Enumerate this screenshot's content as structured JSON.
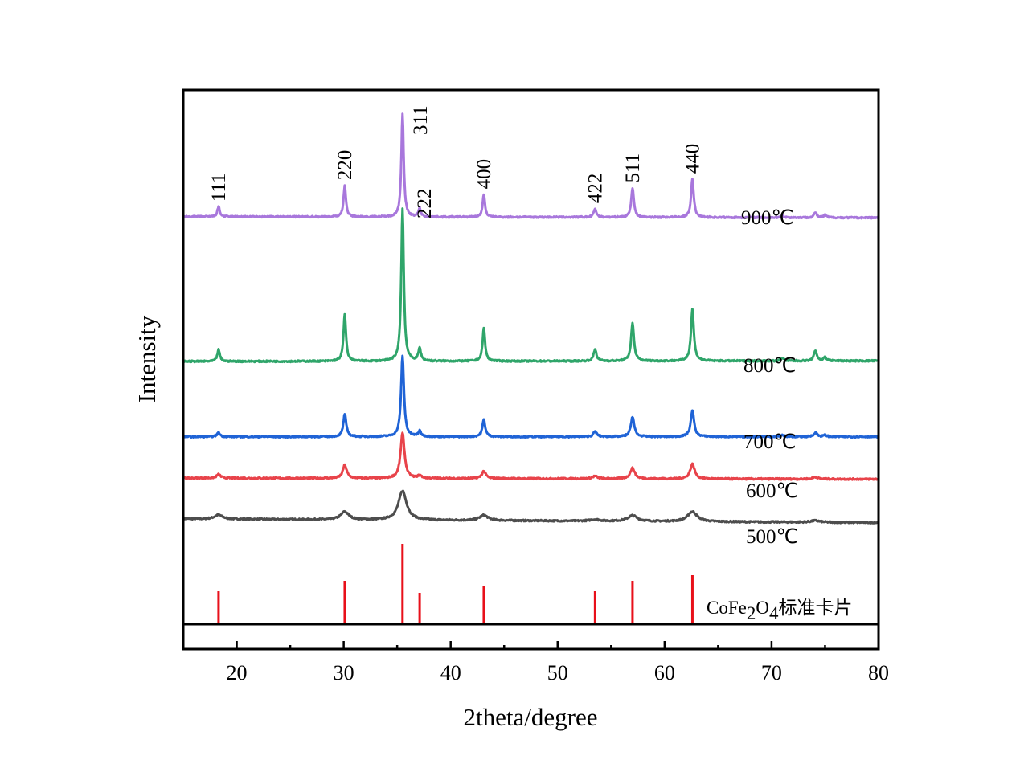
{
  "chart_data": {
    "type": "line",
    "title": "",
    "xlabel": "2theta/degree",
    "ylabel": "Intensity",
    "xlim": [
      15,
      80
    ],
    "ylim": [
      0,
      100
    ],
    "x_ticks": [
      20,
      30,
      40,
      50,
      60,
      70,
      80
    ],
    "x_tick_labels": [
      "20",
      "30",
      "40",
      "50",
      "60",
      "70",
      "80"
    ],
    "x_minor_ticks": [
      25,
      35,
      45,
      55,
      65,
      75
    ],
    "grid": false,
    "legend": "inline labels at right",
    "series": [
      {
        "name": "500℃",
        "label": "500℃",
        "color": "#4d4d4d",
        "baseline": 18.8,
        "baseline_end": 18.1,
        "peak_width": 0.45,
        "peaks": [
          {
            "x": 18.3,
            "height": 0.8
          },
          {
            "x": 30.1,
            "height": 1.5
          },
          {
            "x": 35.5,
            "height": 5.5
          },
          {
            "x": 43.1,
            "height": 1.0
          },
          {
            "x": 53.5,
            "height": 0.3
          },
          {
            "x": 57.0,
            "height": 1.1
          },
          {
            "x": 62.6,
            "height": 1.9
          },
          {
            "x": 74.1,
            "height": 0.3
          }
        ]
      },
      {
        "name": "600℃",
        "label": "600℃",
        "color": "#e8434a",
        "baseline": 26.5,
        "baseline_end": 26.3,
        "peak_width": 0.22,
        "peaks": [
          {
            "x": 18.3,
            "height": 0.7
          },
          {
            "x": 30.1,
            "height": 2.5
          },
          {
            "x": 35.5,
            "height": 8.5
          },
          {
            "x": 37.1,
            "height": 0.5
          },
          {
            "x": 43.1,
            "height": 1.4
          },
          {
            "x": 53.5,
            "height": 0.5
          },
          {
            "x": 57.0,
            "height": 2.0
          },
          {
            "x": 62.6,
            "height": 2.8
          },
          {
            "x": 74.1,
            "height": 0.4
          }
        ]
      },
      {
        "name": "700℃",
        "label": "700℃",
        "color": "#1f63d6",
        "baseline": 34.3,
        "baseline_end": 34.3,
        "peak_width": 0.16,
        "peaks": [
          {
            "x": 18.3,
            "height": 0.8
          },
          {
            "x": 30.1,
            "height": 4.3
          },
          {
            "x": 35.5,
            "height": 15.2
          },
          {
            "x": 37.1,
            "height": 1.0
          },
          {
            "x": 43.1,
            "height": 3.2
          },
          {
            "x": 53.5,
            "height": 1.0
          },
          {
            "x": 57.0,
            "height": 3.8
          },
          {
            "x": 62.6,
            "height": 5.0
          },
          {
            "x": 71.0,
            "height": 0.3
          },
          {
            "x": 74.1,
            "height": 0.8
          },
          {
            "x": 75.0,
            "height": 0.3
          }
        ]
      },
      {
        "name": "800℃",
        "label": "800℃",
        "color": "#2fa56a",
        "baseline": 48.5,
        "baseline_end": 48.6,
        "peak_width": 0.14,
        "peaks": [
          {
            "x": 18.3,
            "height": 2.2
          },
          {
            "x": 30.1,
            "height": 8.8
          },
          {
            "x": 35.5,
            "height": 28.8
          },
          {
            "x": 37.1,
            "height": 2.4
          },
          {
            "x": 43.1,
            "height": 6.2
          },
          {
            "x": 53.5,
            "height": 2.2
          },
          {
            "x": 57.0,
            "height": 7.1
          },
          {
            "x": 62.6,
            "height": 9.7
          },
          {
            "x": 71.0,
            "height": 0.6
          },
          {
            "x": 74.1,
            "height": 2.0
          },
          {
            "x": 75.0,
            "height": 0.7
          }
        ]
      },
      {
        "name": "900℃",
        "label": "900℃",
        "color": "#a877dc",
        "baseline": 75.8,
        "baseline_end": 75.6,
        "peak_width": 0.13,
        "peaks": [
          {
            "x": 18.3,
            "height": 1.9
          },
          {
            "x": 30.1,
            "height": 6.0
          },
          {
            "x": 35.5,
            "height": 19.5
          },
          {
            "x": 37.1,
            "height": 1.6
          },
          {
            "x": 43.1,
            "height": 4.3
          },
          {
            "x": 53.5,
            "height": 1.6
          },
          {
            "x": 57.0,
            "height": 5.5
          },
          {
            "x": 62.6,
            "height": 7.2
          },
          {
            "x": 71.0,
            "height": 0.4
          },
          {
            "x": 74.1,
            "height": 1.0
          },
          {
            "x": 75.0,
            "height": 0.5
          }
        ]
      }
    ],
    "reference": {
      "name": "CoFe2O4标准卡片",
      "label_parts": [
        "CoFe",
        "2",
        "O",
        "4",
        "标准卡片"
      ],
      "color": "#e8101a",
      "x": [
        18.3,
        30.1,
        35.5,
        37.1,
        43.1,
        53.5,
        57.0,
        62.6
      ],
      "values": [
        41,
        54,
        100,
        39,
        48,
        41,
        54,
        61
      ]
    },
    "annotations": [
      {
        "text": "111",
        "x": 18.3
      },
      {
        "text": "220",
        "x": 30.1
      },
      {
        "text": "311",
        "x": 35.5
      },
      {
        "text": "222",
        "x": 37.1
      },
      {
        "text": "400",
        "x": 43.1
      },
      {
        "text": "422",
        "x": 53.5
      },
      {
        "text": "511",
        "x": 57.0
      },
      {
        "text": "440",
        "x": 62.6
      }
    ]
  }
}
